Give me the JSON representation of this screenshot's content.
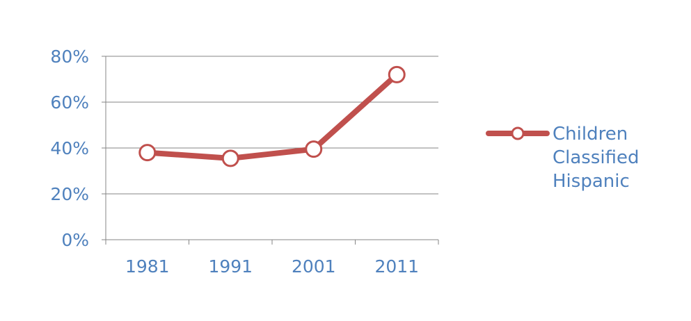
{
  "chart_data": {
    "type": "line",
    "categories": [
      "1981",
      "1991",
      "2001",
      "2011"
    ],
    "series": [
      {
        "name": "Children Classified Hispanic",
        "legend_lines": [
          "Children",
          "Classified",
          "Hispanic"
        ],
        "values": [
          0.38,
          0.355,
          0.395,
          0.72
        ]
      }
    ],
    "y_ticks": [
      {
        "value": 0,
        "label": "0%"
      },
      {
        "value": 0.2,
        "label": "20%"
      },
      {
        "value": 0.4,
        "label": "40%"
      },
      {
        "value": 0.6,
        "label": "60%"
      },
      {
        "value": 0.8,
        "label": "80%"
      }
    ],
    "ylim": [
      0,
      0.8
    ],
    "grid": true,
    "legend_position": "right",
    "colors": {
      "series": "#c0504d",
      "marker_fill": "#ffffff",
      "text": "#4f81bd",
      "grid": "#868686",
      "axis": "#868686"
    }
  }
}
